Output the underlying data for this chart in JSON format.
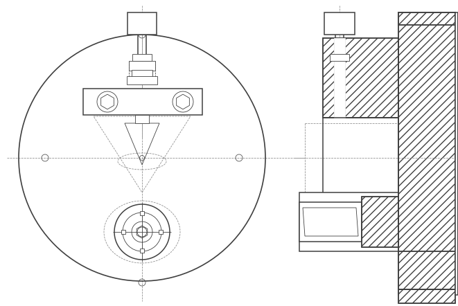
{
  "bg_color": "#ffffff",
  "line_color": "#404040",
  "fig_width": 6.61,
  "fig_height": 4.42,
  "dpi": 100,
  "lw_main": 1.1,
  "lw_thin": 0.6,
  "lw_dash": 0.55
}
